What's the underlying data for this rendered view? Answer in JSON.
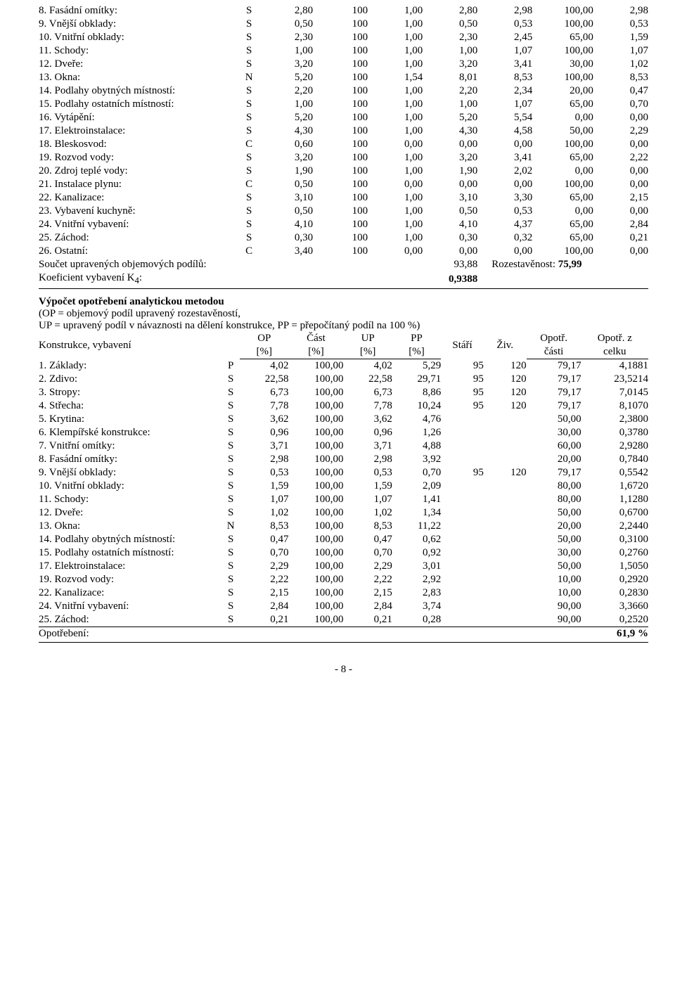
{
  "colors": {
    "text": "#000000",
    "background": "#ffffff",
    "border": "#000000"
  },
  "typography": {
    "font_family": "Times New Roman",
    "body_fontsize_pt": 11
  },
  "table1": {
    "col_widths_pct": [
      33,
      3,
      9,
      9,
      9,
      9,
      9,
      10,
      9
    ],
    "rows": [
      {
        "no": " 8.",
        "name": "Fasádní omítky:",
        "t": "S",
        "v": [
          "2,80",
          "100",
          "1,00",
          "2,80",
          "2,98",
          "100,00",
          "2,98"
        ]
      },
      {
        "no": " 9.",
        "name": "Vnější obklady:",
        "t": "S",
        "v": [
          "0,50",
          "100",
          "1,00",
          "0,50",
          "0,53",
          "100,00",
          "0,53"
        ]
      },
      {
        "no": "10.",
        "name": "Vnitřní obklady:",
        "t": "S",
        "v": [
          "2,30",
          "100",
          "1,00",
          "2,30",
          "2,45",
          "65,00",
          "1,59"
        ]
      },
      {
        "no": "11.",
        "name": "Schody:",
        "t": "S",
        "v": [
          "1,00",
          "100",
          "1,00",
          "1,00",
          "1,07",
          "100,00",
          "1,07"
        ]
      },
      {
        "no": "12.",
        "name": "Dveře:",
        "t": "S",
        "v": [
          "3,20",
          "100",
          "1,00",
          "3,20",
          "3,41",
          "30,00",
          "1,02"
        ]
      },
      {
        "no": "13.",
        "name": "Okna:",
        "t": "N",
        "v": [
          "5,20",
          "100",
          "1,54",
          "8,01",
          "8,53",
          "100,00",
          "8,53"
        ]
      },
      {
        "no": "14.",
        "name": "Podlahy obytných místností:",
        "t": "S",
        "v": [
          "2,20",
          "100",
          "1,00",
          "2,20",
          "2,34",
          "20,00",
          "0,47"
        ]
      },
      {
        "no": "15.",
        "name": "Podlahy ostatních místností:",
        "t": "S",
        "v": [
          "1,00",
          "100",
          "1,00",
          "1,00",
          "1,07",
          "65,00",
          "0,70"
        ]
      },
      {
        "no": "16.",
        "name": "Vytápění:",
        "t": "S",
        "v": [
          "5,20",
          "100",
          "1,00",
          "5,20",
          "5,54",
          "0,00",
          "0,00"
        ]
      },
      {
        "no": "17.",
        "name": "Elektroinstalace:",
        "t": "S",
        "v": [
          "4,30",
          "100",
          "1,00",
          "4,30",
          "4,58",
          "50,00",
          "2,29"
        ]
      },
      {
        "no": "18.",
        "name": "Bleskosvod:",
        "t": "C",
        "v": [
          "0,60",
          "100",
          "0,00",
          "0,00",
          "0,00",
          "100,00",
          "0,00"
        ]
      },
      {
        "no": "19.",
        "name": "Rozvod vody:",
        "t": "S",
        "v": [
          "3,20",
          "100",
          "1,00",
          "3,20",
          "3,41",
          "65,00",
          "2,22"
        ]
      },
      {
        "no": "20.",
        "name": "Zdroj teplé vody:",
        "t": "S",
        "v": [
          "1,90",
          "100",
          "1,00",
          "1,90",
          "2,02",
          "0,00",
          "0,00"
        ]
      },
      {
        "no": "21.",
        "name": "Instalace plynu:",
        "t": "C",
        "v": [
          "0,50",
          "100",
          "0,00",
          "0,00",
          "0,00",
          "100,00",
          "0,00"
        ]
      },
      {
        "no": "22.",
        "name": "Kanalizace:",
        "t": "S",
        "v": [
          "3,10",
          "100",
          "1,00",
          "3,10",
          "3,30",
          "65,00",
          "2,15"
        ]
      },
      {
        "no": "23.",
        "name": "Vybavení kuchyně:",
        "t": "S",
        "v": [
          "0,50",
          "100",
          "1,00",
          "0,50",
          "0,53",
          "0,00",
          "0,00"
        ]
      },
      {
        "no": "24.",
        "name": "Vnitřní vybavení:",
        "t": "S",
        "v": [
          "4,10",
          "100",
          "1,00",
          "4,10",
          "4,37",
          "65,00",
          "2,84"
        ]
      },
      {
        "no": "25.",
        "name": "Záchod:",
        "t": "S",
        "v": [
          "0,30",
          "100",
          "1,00",
          "0,30",
          "0,32",
          "65,00",
          "0,21"
        ]
      },
      {
        "no": "26.",
        "name": "Ostatní:",
        "t": "C",
        "v": [
          "3,40",
          "100",
          "0,00",
          "0,00",
          "0,00",
          "100,00",
          "0,00"
        ]
      }
    ],
    "sum": {
      "label1": "Součet upravených objemových podílů:",
      "value1": "93,88",
      "label2": "Rozestavěnost:",
      "value2": "75,99"
    },
    "coef": {
      "label_prefix": "Koeficient vybavení K",
      "sub": "4",
      "label_suffix": ":",
      "value": "0,9388"
    }
  },
  "section": {
    "title": "Výpočet opotřebení analytickou metodou",
    "note1": "(OP = objemový podíl upravený rozestavěností,",
    "note2": "UP = upravený podíl v návaznosti na dělení konstrukce, PP = přepočítaný podíl na 100 %)"
  },
  "table2": {
    "col_widths_pct": [
      30,
      3,
      8,
      9,
      8,
      8,
      7,
      7,
      9,
      11
    ],
    "header": {
      "a": "Konstrukce, vybavení",
      "op": "OP",
      "op2": "[%]",
      "cast": "Část",
      "cast2": "[%]",
      "up": "UP",
      "up2": "[%]",
      "pp": "PP",
      "pp2": "[%]",
      "stari": "Stáří",
      "ziv": "Živ.",
      "opo": "Opotř.",
      "opo2": "části",
      "opoz": "Opotř. z",
      "opoz2": "celku"
    },
    "rows": [
      {
        "no": " 1.",
        "name": "Základy:",
        "t": "P",
        "v": [
          "4,02",
          "100,00",
          "4,02",
          "5,29",
          "95",
          "120",
          "79,17",
          "4,1881"
        ]
      },
      {
        "no": " 2.",
        "name": "Zdivo:",
        "t": "S",
        "v": [
          "22,58",
          "100,00",
          "22,58",
          "29,71",
          "95",
          "120",
          "79,17",
          "23,5214"
        ]
      },
      {
        "no": " 3.",
        "name": "Stropy:",
        "t": "S",
        "v": [
          "6,73",
          "100,00",
          "6,73",
          "8,86",
          "95",
          "120",
          "79,17",
          "7,0145"
        ]
      },
      {
        "no": " 4.",
        "name": "Střecha:",
        "t": "S",
        "v": [
          "7,78",
          "100,00",
          "7,78",
          "10,24",
          "95",
          "120",
          "79,17",
          "8,1070"
        ]
      },
      {
        "no": " 5.",
        "name": "Krytina:",
        "t": "S",
        "v": [
          "3,62",
          "100,00",
          "3,62",
          "4,76",
          "",
          "",
          "50,00",
          "2,3800"
        ]
      },
      {
        "no": " 6.",
        "name": "Klempířské konstrukce:",
        "t": "S",
        "v": [
          "0,96",
          "100,00",
          "0,96",
          "1,26",
          "",
          "",
          "30,00",
          "0,3780"
        ]
      },
      {
        "no": " 7.",
        "name": "Vnitřní omítky:",
        "t": "S",
        "v": [
          "3,71",
          "100,00",
          "3,71",
          "4,88",
          "",
          "",
          "60,00",
          "2,9280"
        ]
      },
      {
        "no": " 8.",
        "name": "Fasádní omítky:",
        "t": "S",
        "v": [
          "2,98",
          "100,00",
          "2,98",
          "3,92",
          "",
          "",
          "20,00",
          "0,7840"
        ]
      },
      {
        "no": " 9.",
        "name": "Vnější obklady:",
        "t": "S",
        "v": [
          "0,53",
          "100,00",
          "0,53",
          "0,70",
          "95",
          "120",
          "79,17",
          "0,5542"
        ]
      },
      {
        "no": "10.",
        "name": "Vnitřní obklady:",
        "t": "S",
        "v": [
          "1,59",
          "100,00",
          "1,59",
          "2,09",
          "",
          "",
          "80,00",
          "1,6720"
        ]
      },
      {
        "no": "11.",
        "name": "Schody:",
        "t": "S",
        "v": [
          "1,07",
          "100,00",
          "1,07",
          "1,41",
          "",
          "",
          "80,00",
          "1,1280"
        ]
      },
      {
        "no": "12.",
        "name": "Dveře:",
        "t": "S",
        "v": [
          "1,02",
          "100,00",
          "1,02",
          "1,34",
          "",
          "",
          "50,00",
          "0,6700"
        ]
      },
      {
        "no": "13.",
        "name": "Okna:",
        "t": "N",
        "v": [
          "8,53",
          "100,00",
          "8,53",
          "11,22",
          "",
          "",
          "20,00",
          "2,2440"
        ]
      },
      {
        "no": "14.",
        "name": "Podlahy obytných místností:",
        "t": "S",
        "v": [
          "0,47",
          "100,00",
          "0,47",
          "0,62",
          "",
          "",
          "50,00",
          "0,3100"
        ]
      },
      {
        "no": "15.",
        "name": "Podlahy ostatních místností:",
        "t": "S",
        "v": [
          "0,70",
          "100,00",
          "0,70",
          "0,92",
          "",
          "",
          "30,00",
          "0,2760"
        ]
      },
      {
        "no": "17.",
        "name": "Elektroinstalace:",
        "t": "S",
        "v": [
          "2,29",
          "100,00",
          "2,29",
          "3,01",
          "",
          "",
          "50,00",
          "1,5050"
        ]
      },
      {
        "no": "19.",
        "name": "Rozvod vody:",
        "t": "S",
        "v": [
          "2,22",
          "100,00",
          "2,22",
          "2,92",
          "",
          "",
          "10,00",
          "0,2920"
        ]
      },
      {
        "no": "22.",
        "name": "Kanalizace:",
        "t": "S",
        "v": [
          "2,15",
          "100,00",
          "2,15",
          "2,83",
          "",
          "",
          "10,00",
          "0,2830"
        ]
      },
      {
        "no": "24.",
        "name": "Vnitřní vybavení:",
        "t": "S",
        "v": [
          "2,84",
          "100,00",
          "2,84",
          "3,74",
          "",
          "",
          "90,00",
          "3,3660"
        ]
      },
      {
        "no": "25.",
        "name": "Záchod:",
        "t": "S",
        "v": [
          "0,21",
          "100,00",
          "0,21",
          "0,28",
          "",
          "",
          "90,00",
          "0,2520"
        ]
      }
    ],
    "footer": {
      "label": "Opotřebení:",
      "value": "61,9 %"
    }
  },
  "page_footer": "- 8 -"
}
